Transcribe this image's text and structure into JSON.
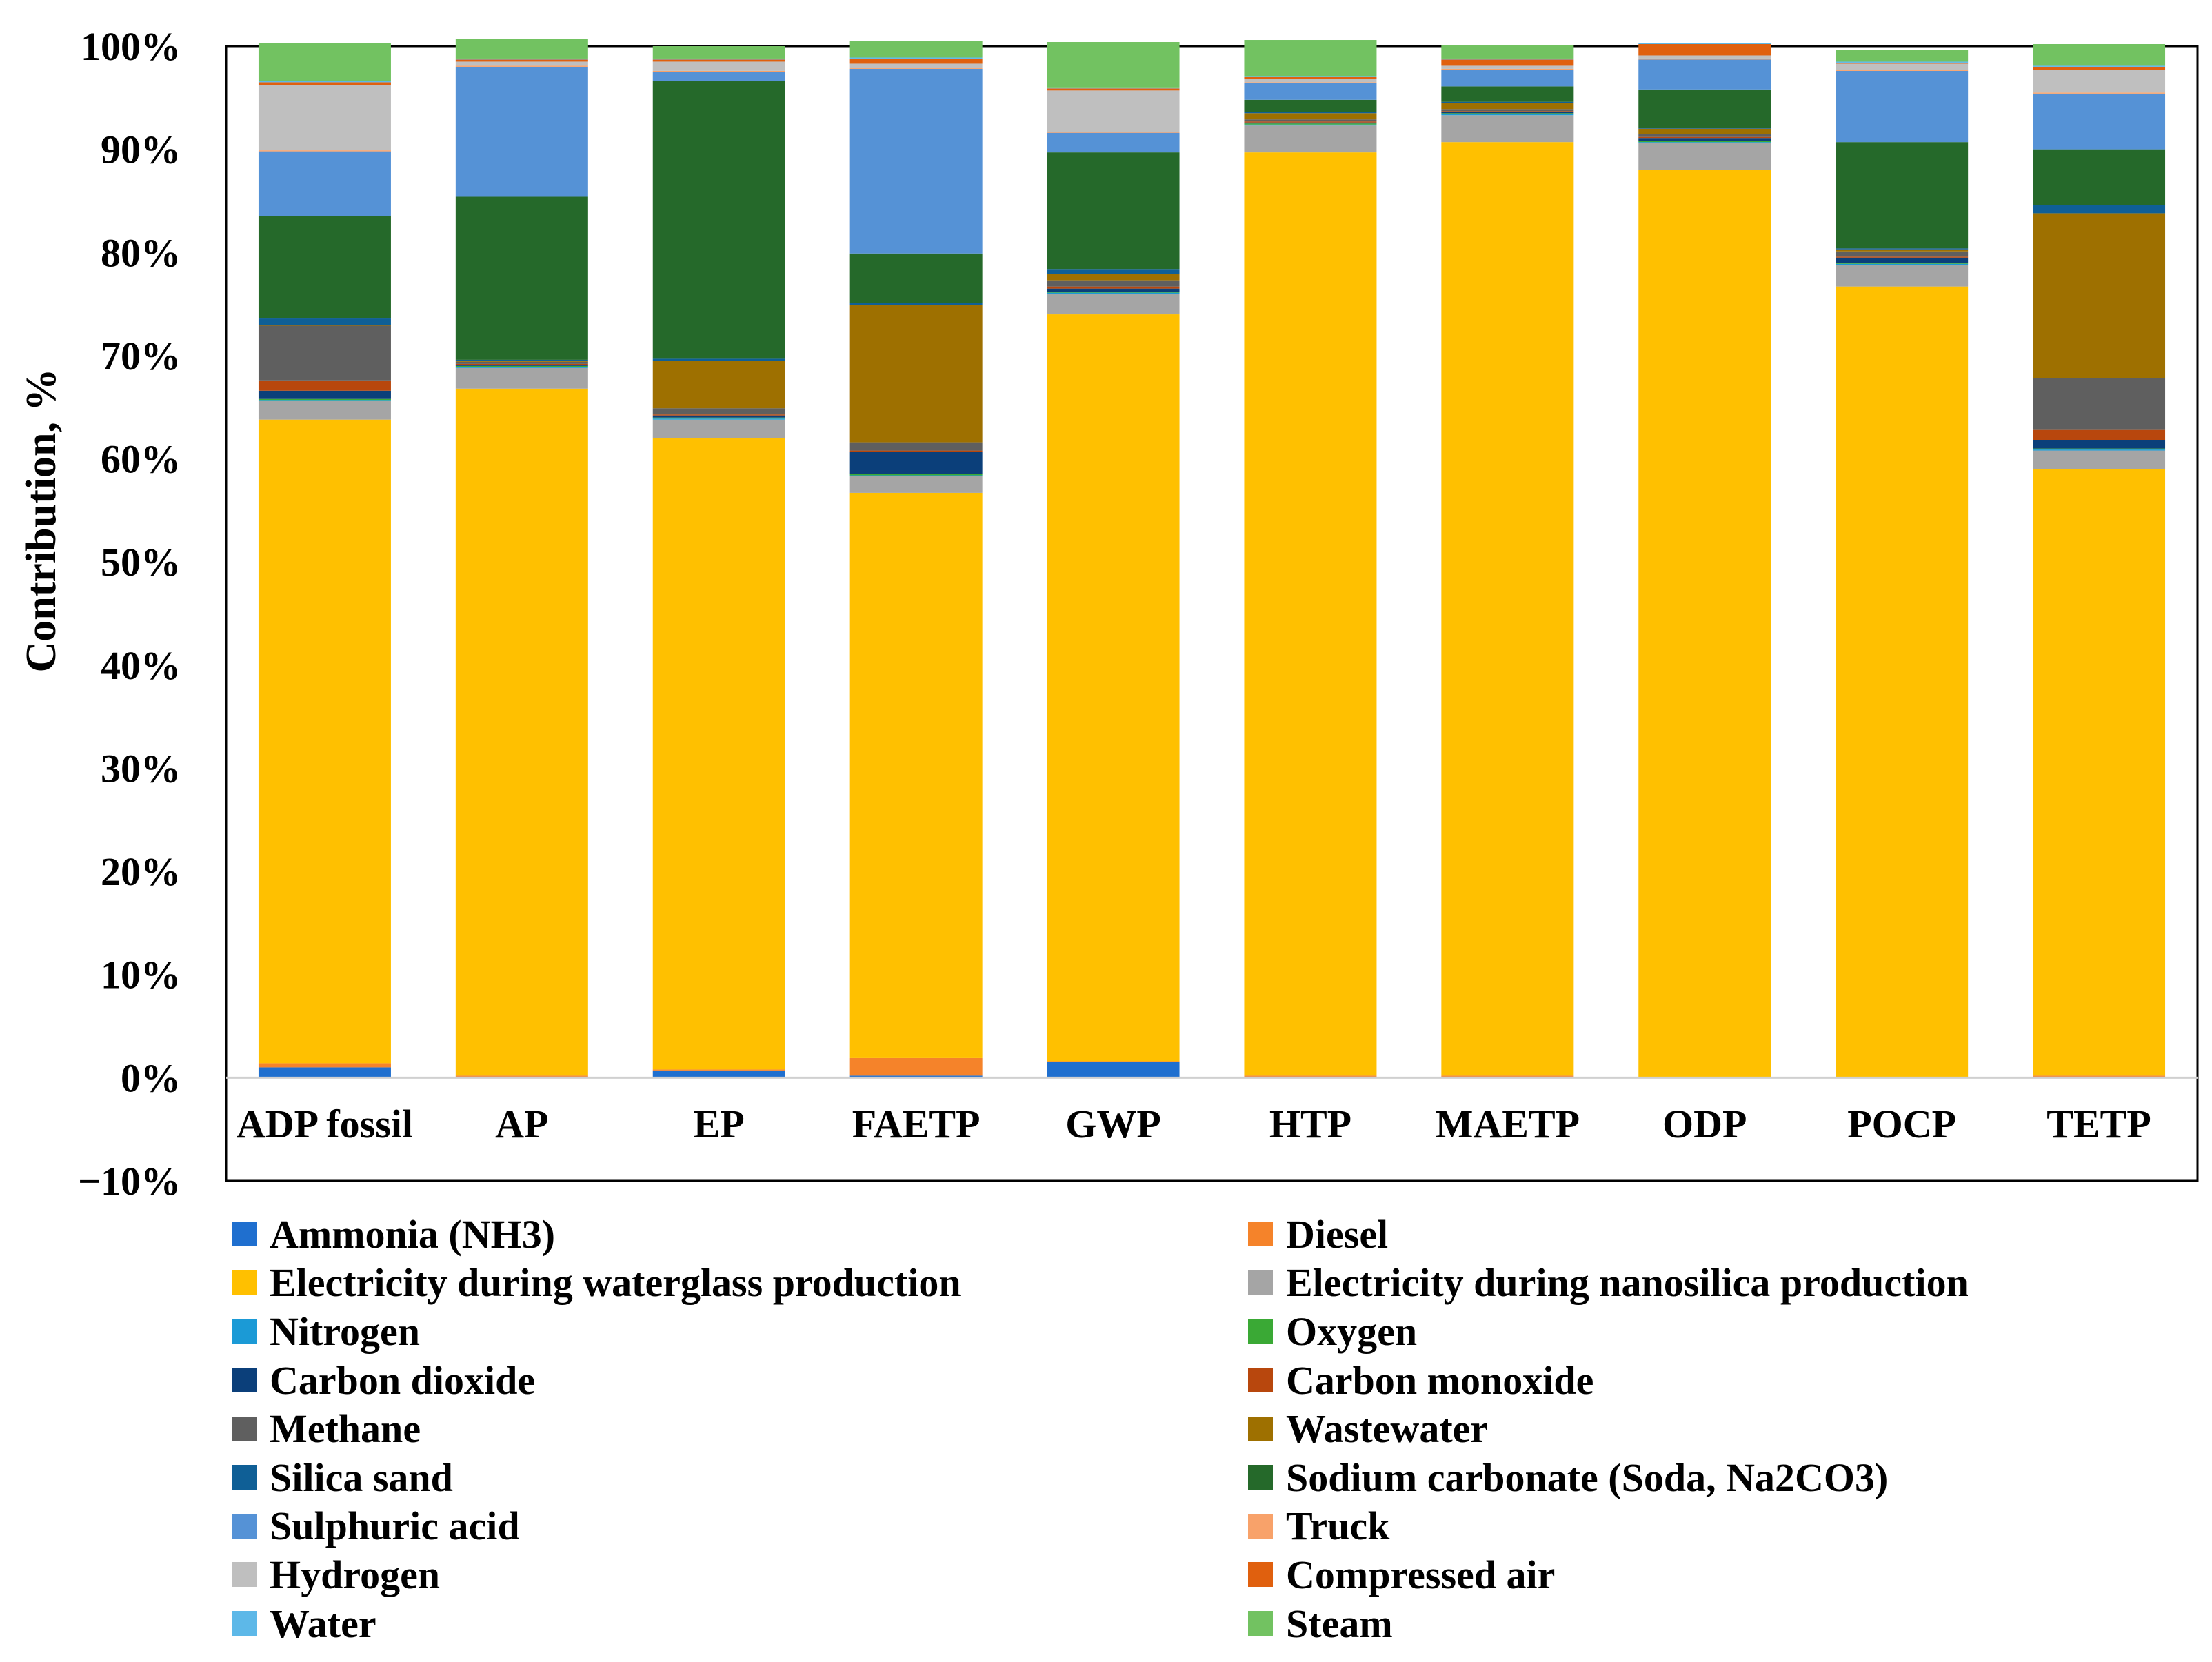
{
  "chart_data": {
    "type": "stacked-bar",
    "ylabel": "Contribution, %",
    "ylim": [
      -10,
      100
    ],
    "yticks": [
      "−10%",
      "0%",
      "10%",
      "20%",
      "30%",
      "40%",
      "50%",
      "60%",
      "70%",
      "80%",
      "90%",
      "100%"
    ],
    "categories": [
      "ADP fossil",
      "AP",
      "EP",
      "FAETP",
      "GWP",
      "HTP",
      "MAETP",
      "ODP",
      "POCP",
      "TETP"
    ],
    "legend_position": "bottom",
    "series": [
      {
        "name": "Ammonia (NH3)",
        "color": "#1f6fcf",
        "values": [
          1.0,
          0.1,
          0.7,
          0.2,
          1.5,
          0.1,
          0.1,
          0.0,
          0.0,
          0.1
        ]
      },
      {
        "name": "Diesel",
        "color": "#f5832a",
        "values": [
          0.4,
          0.1,
          0.1,
          1.7,
          0.1,
          0.1,
          0.1,
          0.0,
          0.0,
          0.1
        ]
      },
      {
        "name": "Electricity during waterglass production",
        "color": "#ffc000",
        "values": [
          62.4,
          66.6,
          61.2,
          54.8,
          72.4,
          89.5,
          90.5,
          88.0,
          76.7,
          58.8
        ]
      },
      {
        "name": "Electricity during nanosilica production",
        "color": "#a5a5a5",
        "values": [
          1.8,
          2.0,
          1.8,
          1.6,
          2.0,
          2.6,
          2.6,
          2.6,
          2.1,
          1.8
        ]
      },
      {
        "name": "Nitrogen",
        "color": "#1b9ad6",
        "values": [
          0.1,
          0.1,
          0.1,
          0.1,
          0.1,
          0.1,
          0.1,
          0.1,
          0.1,
          0.1
        ]
      },
      {
        "name": "Oxygen",
        "color": "#3aa935",
        "values": [
          0.1,
          0.1,
          0.1,
          0.1,
          0.1,
          0.1,
          0.1,
          0.1,
          0.1,
          0.1
        ]
      },
      {
        "name": "Carbon dioxide",
        "color": "#0b3f7a",
        "values": [
          0.8,
          0.1,
          0.2,
          2.2,
          0.3,
          0.1,
          0.1,
          0.3,
          0.5,
          0.8
        ]
      },
      {
        "name": "Carbon monoxide",
        "color": "#b8470d",
        "values": [
          1.0,
          0.1,
          0.1,
          0.1,
          0.2,
          0.1,
          0.1,
          0.1,
          0.1,
          1.0
        ]
      },
      {
        "name": "Methane",
        "color": "#5f5f5f",
        "values": [
          5.3,
          0.2,
          0.6,
          0.8,
          0.6,
          0.2,
          0.2,
          0.3,
          0.5,
          5.0
        ]
      },
      {
        "name": "Wastewater",
        "color": "#9e7000",
        "values": [
          0.1,
          0.1,
          4.6,
          13.3,
          0.6,
          0.6,
          0.6,
          0.5,
          0.2,
          16.0
        ]
      },
      {
        "name": "Silica sand",
        "color": "#0f5f96",
        "values": [
          0.6,
          0.1,
          0.2,
          0.2,
          0.5,
          0.1,
          0.1,
          0.1,
          0.1,
          0.8
        ]
      },
      {
        "name": "Sodium carbonate (Soda, Na2CO3)",
        "color": "#25692a",
        "values": [
          9.9,
          15.8,
          26.9,
          4.8,
          11.3,
          1.2,
          1.5,
          3.7,
          10.3,
          5.4
        ]
      },
      {
        "name": "Sulphuric acid",
        "color": "#5592d6",
        "values": [
          6.3,
          12.6,
          0.9,
          17.9,
          1.9,
          1.6,
          1.6,
          2.9,
          6.9,
          5.4
        ]
      },
      {
        "name": "Truck",
        "color": "#f8a26a",
        "values": [
          0.1,
          0.1,
          0.1,
          0.1,
          0.1,
          0.1,
          0.1,
          0.1,
          0.1,
          0.1
        ]
      },
      {
        "name": "Hydrogen",
        "color": "#bfbfbf",
        "values": [
          6.3,
          0.4,
          0.9,
          0.4,
          4.0,
          0.3,
          0.3,
          0.3,
          0.6,
          2.2
        ]
      },
      {
        "name": "Compressed air",
        "color": "#e0600e",
        "values": [
          0.3,
          0.2,
          0.2,
          0.5,
          0.2,
          0.2,
          0.6,
          1.1,
          0.1,
          0.3
        ]
      },
      {
        "name": "Water",
        "color": "#5db8e8",
        "values": [
          0.1,
          0.1,
          0.1,
          0.1,
          0.1,
          0.1,
          0.1,
          0.1,
          0.1,
          0.1
        ]
      },
      {
        "name": "Steam",
        "color": "#72c261",
        "values": [
          3.7,
          1.9,
          1.2,
          1.6,
          4.4,
          3.5,
          1.3,
          0.0,
          1.1,
          2.1
        ]
      }
    ]
  }
}
